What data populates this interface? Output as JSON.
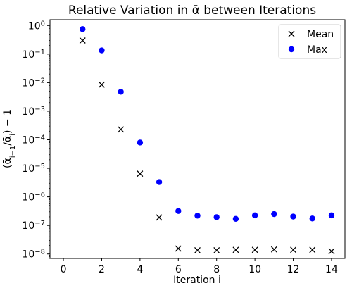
{
  "chart_data": {
    "type": "scatter",
    "title": "Relative Variation in ᾱ between Iterations",
    "xlabel": "Iteration i",
    "ylabel": "(ᾱ_{i−1}/ᾱ_i) − 1",
    "xlim": [
      -0.7,
      14.7
    ],
    "ylim": [
      7e-09,
      1.6
    ],
    "yscale": "log",
    "xticks": [
      0,
      2,
      4,
      6,
      8,
      10,
      12,
      14
    ],
    "yticks": [
      {
        "value": 1e-08,
        "base": "10",
        "exp": "−8"
      },
      {
        "value": 1e-07,
        "base": "10",
        "exp": "−7"
      },
      {
        "value": 1e-06,
        "base": "10",
        "exp": "−6"
      },
      {
        "value": 1e-05,
        "base": "10",
        "exp": "−5"
      },
      {
        "value": 0.0001,
        "base": "10",
        "exp": "−4"
      },
      {
        "value": 0.001,
        "base": "10",
        "exp": "−3"
      },
      {
        "value": 0.01,
        "base": "10",
        "exp": "−2"
      },
      {
        "value": 0.1,
        "base": "10",
        "exp": "−1"
      },
      {
        "value": 1,
        "base": "10",
        "exp": "0"
      }
    ],
    "legend_position": "top-right",
    "grid": false,
    "series": [
      {
        "name": "Mean",
        "marker": "x",
        "color": "#000000",
        "x": [
          1,
          2,
          3,
          4,
          5,
          6,
          7,
          8,
          9,
          10,
          11,
          12,
          13,
          14
        ],
        "y": [
          0.3,
          0.0085,
          0.00023,
          6.5e-06,
          1.9e-07,
          1.55e-08,
          1.35e-08,
          1.35e-08,
          1.4e-08,
          1.4e-08,
          1.45e-08,
          1.4e-08,
          1.4e-08,
          1.25e-08
        ]
      },
      {
        "name": "Max",
        "marker": "o",
        "color": "#0000ff",
        "x": [
          1,
          2,
          3,
          4,
          5,
          6,
          7,
          8,
          9,
          10,
          11,
          12,
          13,
          14
        ],
        "y": [
          0.75,
          0.135,
          0.0048,
          8e-05,
          3.3e-06,
          3.2e-07,
          2.2e-07,
          1.95e-07,
          1.7e-07,
          2.25e-07,
          2.5e-07,
          2.05e-07,
          1.75e-07,
          2.25e-07
        ]
      }
    ]
  }
}
